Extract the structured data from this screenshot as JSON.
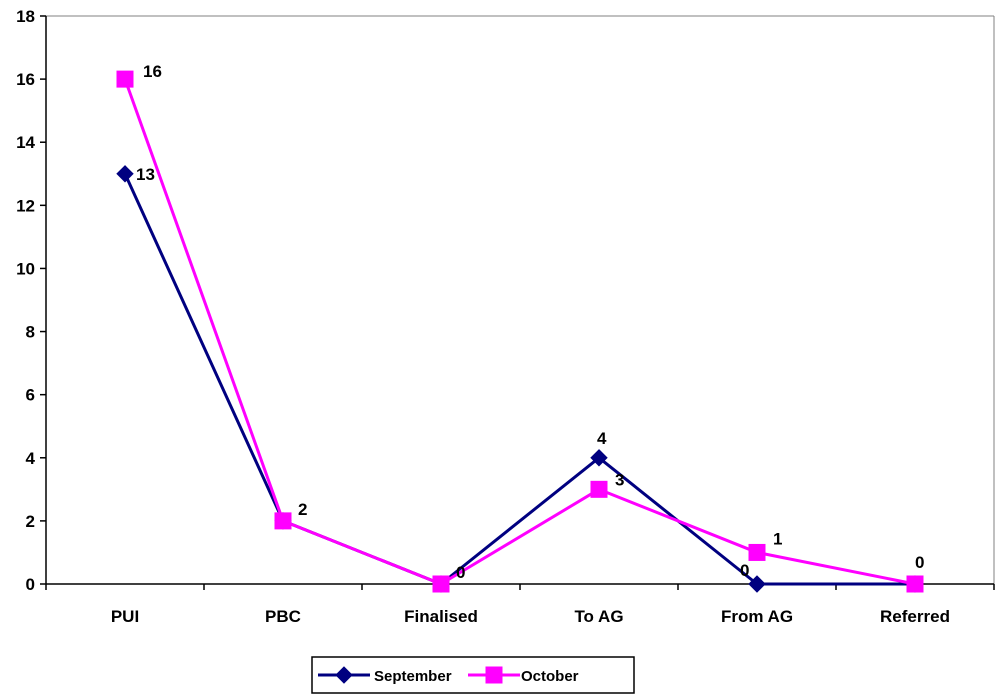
{
  "chart_data": {
    "type": "line",
    "categories": [
      "PUI",
      "PBC",
      "Finalised",
      "To AG",
      "From AG",
      "Referred"
    ],
    "series": [
      {
        "name": "September",
        "values": [
          13,
          2,
          0,
          4,
          0,
          0
        ],
        "color": "#000080",
        "marker": "diamond"
      },
      {
        "name": "October",
        "values": [
          16,
          2,
          0,
          3,
          1,
          0
        ],
        "color": "#ff00ff",
        "marker": "square"
      }
    ],
    "ylim": [
      0,
      18
    ],
    "yticks": [
      0,
      2,
      4,
      6,
      8,
      10,
      12,
      14,
      16,
      18
    ],
    "grid": false,
    "legend": "bottom",
    "data_labels": [
      {
        "series": 0,
        "index": 0,
        "text": "13"
      },
      {
        "series": 1,
        "index": 0,
        "text": "16"
      },
      {
        "series": 1,
        "index": 1,
        "text": "2"
      },
      {
        "series": 0,
        "index": 2,
        "text": "0"
      },
      {
        "series": 0,
        "index": 3,
        "text": "4"
      },
      {
        "series": 1,
        "index": 3,
        "text": "3"
      },
      {
        "series": 0,
        "index": 4,
        "text": "0"
      },
      {
        "series": 1,
        "index": 4,
        "text": "1"
      },
      {
        "series": 1,
        "index": 5,
        "text": "0"
      }
    ]
  }
}
